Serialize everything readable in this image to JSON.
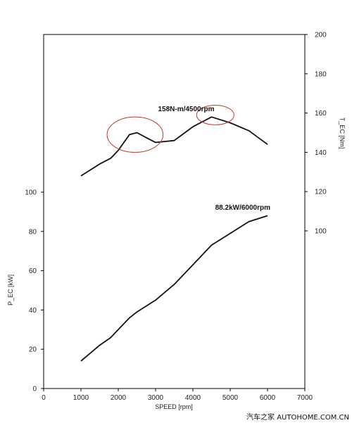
{
  "chart_data": {
    "type": "line",
    "title": "",
    "xlabel": "SPEED [rpm]",
    "xlim": [
      0,
      7000
    ],
    "xticks": [
      0,
      1000,
      2000,
      3000,
      4000,
      5000,
      6000,
      7000
    ],
    "left_axis": {
      "label": "P_EC [kW]",
      "ylim": [
        0,
        100
      ],
      "ticks": [
        0,
        20,
        40,
        60,
        80,
        100
      ]
    },
    "right_axis": {
      "label": "T_EC [Nm]",
      "ylim": [
        100,
        200
      ],
      "ticks": [
        100,
        120,
        140,
        160,
        180,
        200
      ]
    },
    "grid": false,
    "series": [
      {
        "axis": "right",
        "x": [
          1000,
          1500,
          1800,
          2000,
          2300,
          2500,
          2800,
          3000,
          3500,
          4000,
          4500,
          5000,
          5500,
          6000
        ],
        "y": [
          128,
          134,
          137,
          141,
          149,
          150,
          147,
          145,
          146,
          153,
          158,
          155,
          151,
          144
        ]
      },
      {
        "axis": "left",
        "x": [
          1000,
          1500,
          1800,
          2000,
          2300,
          2500,
          3000,
          3500,
          4000,
          4500,
          5000,
          5500,
          6000
        ],
        "y": [
          14,
          22,
          26,
          30,
          36,
          39,
          45,
          53,
          63,
          73,
          79,
          85,
          88
        ]
      }
    ],
    "annotations": [
      {
        "text": "158N-m/4500rpm",
        "x": 4500,
        "y": 158,
        "axis": "right"
      },
      {
        "text": "88.2kW/6000rpm",
        "x": 6000,
        "y": 88.2,
        "axis": "left"
      }
    ],
    "highlights": [
      {
        "axis": "right",
        "x_range": [
          1700,
          3200
        ],
        "y_range": [
          140,
          158
        ]
      },
      {
        "axis": "right",
        "x_range": [
          4100,
          5100
        ],
        "y_range": [
          154,
          164
        ]
      }
    ]
  },
  "watermark": "汽车之家 AUTOHOME.COM.CN"
}
